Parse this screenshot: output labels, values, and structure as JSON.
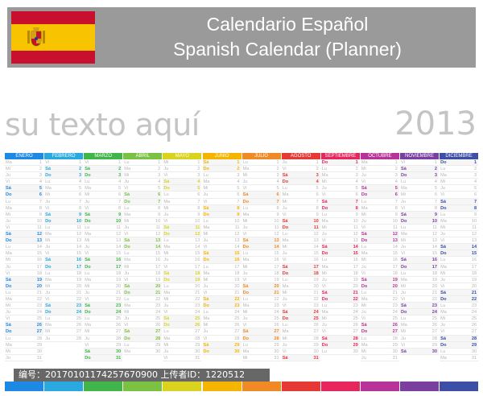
{
  "header": {
    "title_es": "Calendario Español",
    "title_en": "Spanish Calendar (Planner)"
  },
  "subtitle": "su texto aquí",
  "year": "2013",
  "watermark": "编号：20170101174257670900 上传者ID：1220512",
  "colors": {
    "header_bg": "#9a9a9a",
    "flag_red": "#c8102e",
    "flag_yellow": "#f8c300"
  },
  "months": [
    {
      "name": "ENERO",
      "color": "#1e88e5",
      "start": 1,
      "days": 31
    },
    {
      "name": "FEBRERO",
      "color": "#29a9e0",
      "start": 4,
      "days": 28
    },
    {
      "name": "MARZO",
      "color": "#3fb54a",
      "start": 4,
      "days": 31
    },
    {
      "name": "ABRIL",
      "color": "#7cc242",
      "start": 0,
      "days": 30
    },
    {
      "name": "MAYO",
      "color": "#d9d21f",
      "start": 2,
      "days": 31
    },
    {
      "name": "JUNIO",
      "color": "#f4b400",
      "start": 5,
      "days": 30
    },
    {
      "name": "JULIO",
      "color": "#f08a24",
      "start": 0,
      "days": 31
    },
    {
      "name": "AGOSTO",
      "color": "#e53935",
      "start": 3,
      "days": 31
    },
    {
      "name": "SEPTIEMBRE",
      "color": "#e8265e",
      "start": 6,
      "days": 30
    },
    {
      "name": "OCTUBRE",
      "color": "#b83397",
      "start": 1,
      "days": 31
    },
    {
      "name": "NOVIEMBRE",
      "color": "#7b3fa0",
      "start": 4,
      "days": 30
    },
    {
      "name": "DICIEMBRE",
      "color": "#3c4ea6",
      "start": 6,
      "days": 31
    }
  ],
  "day_abbrev": [
    "Lu",
    "Ma",
    "Mi",
    "Ju",
    "Vi",
    "Sá",
    "Do"
  ]
}
